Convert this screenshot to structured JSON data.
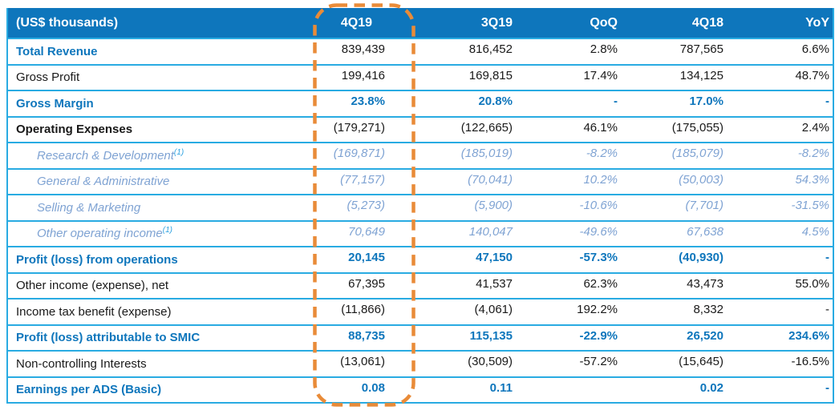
{
  "chart_data": {
    "type": "table",
    "title": "(US$ thousands)",
    "columns": [
      "4Q19",
      "3Q19",
      "QoQ",
      "4Q18",
      "YoY"
    ],
    "highlight": {
      "column": "4Q19",
      "shape": "dashed-rounded-rectangle",
      "color": "#e98b38"
    },
    "rows": [
      {
        "label": "Total Revenue",
        "label_style": "blue-bold",
        "value_style": "black",
        "values": [
          "839,439",
          "816,452",
          "2.8%",
          "787,565",
          "6.6%"
        ]
      },
      {
        "label": "Gross Profit",
        "label_style": "black",
        "value_style": "black",
        "values": [
          "199,416",
          "169,815",
          "17.4%",
          "134,125",
          "48.7%"
        ]
      },
      {
        "label": "Gross Margin",
        "label_style": "blue-bold",
        "value_style": "blue-bold",
        "values": [
          "23.8%",
          "20.8%",
          "-",
          "17.0%",
          "-"
        ]
      },
      {
        "label": "Operating Expenses",
        "label_style": "black-bold",
        "value_style": "black",
        "values": [
          "(179,271)",
          "(122,665)",
          "46.1%",
          "(175,055)",
          "2.4%"
        ]
      },
      {
        "label": "Research & Development",
        "superscript": "(1)",
        "label_style": "sub",
        "value_style": "sub",
        "values": [
          "(169,871)",
          "(185,019)",
          "-8.2%",
          "(185,079)",
          "-8.2%"
        ]
      },
      {
        "label": "General & Administrative",
        "label_style": "sub",
        "value_style": "sub",
        "values": [
          "(77,157)",
          "(70,041)",
          "10.2%",
          "(50,003)",
          "54.3%"
        ]
      },
      {
        "label": "Selling & Marketing",
        "label_style": "sub",
        "value_style": "sub",
        "values": [
          "(5,273)",
          "(5,900)",
          "-10.6%",
          "(7,701)",
          "-31.5%"
        ]
      },
      {
        "label": "Other operating income",
        "superscript": "(1)",
        "label_style": "sub",
        "value_style": "sub",
        "values": [
          "70,649",
          "140,047",
          "-49.6%",
          "67,638",
          "4.5%"
        ]
      },
      {
        "label": "Profit (loss) from operations",
        "label_style": "blue-bold",
        "value_style": "blue-bold",
        "values": [
          "20,145",
          "47,150",
          "-57.3%",
          "(40,930)",
          "-"
        ]
      },
      {
        "label": "Other income (expense), net",
        "label_style": "black",
        "value_style": "black",
        "values": [
          "67,395",
          "41,537",
          "62.3%",
          "43,473",
          "55.0%"
        ]
      },
      {
        "label": "Income tax benefit (expense)",
        "label_style": "black",
        "value_style": "black",
        "values": [
          "(11,866)",
          "(4,061)",
          "192.2%",
          "8,332",
          "-"
        ]
      },
      {
        "label": "Profit (loss) attributable to SMIC",
        "label_style": "blue-bold",
        "value_style": "blue-bold",
        "values": [
          "88,735",
          "115,135",
          "-22.9%",
          "26,520",
          "234.6%"
        ]
      },
      {
        "label": "Non-controlling Interests",
        "label_style": "black",
        "value_style": "black",
        "values": [
          "(13,061)",
          "(30,509)",
          "-57.2%",
          "(15,645)",
          "-16.5%"
        ]
      },
      {
        "label": "Earnings per ADS (Basic)",
        "label_style": "blue-bold",
        "value_style": "blue-bold",
        "values": [
          "0.08",
          "0.11",
          "",
          "0.02",
          "-"
        ]
      }
    ]
  },
  "colors": {
    "header_bg": "#0e76bc",
    "header_text": "#ffffff",
    "accent_blue": "#0e76bc",
    "grid_line": "#29abe2",
    "sub_item_text": "#7fa3d3",
    "superscript": "#2aa0e0",
    "body_text": "#191919",
    "highlight_dash": "#e98b38",
    "background": "#ffffff"
  }
}
